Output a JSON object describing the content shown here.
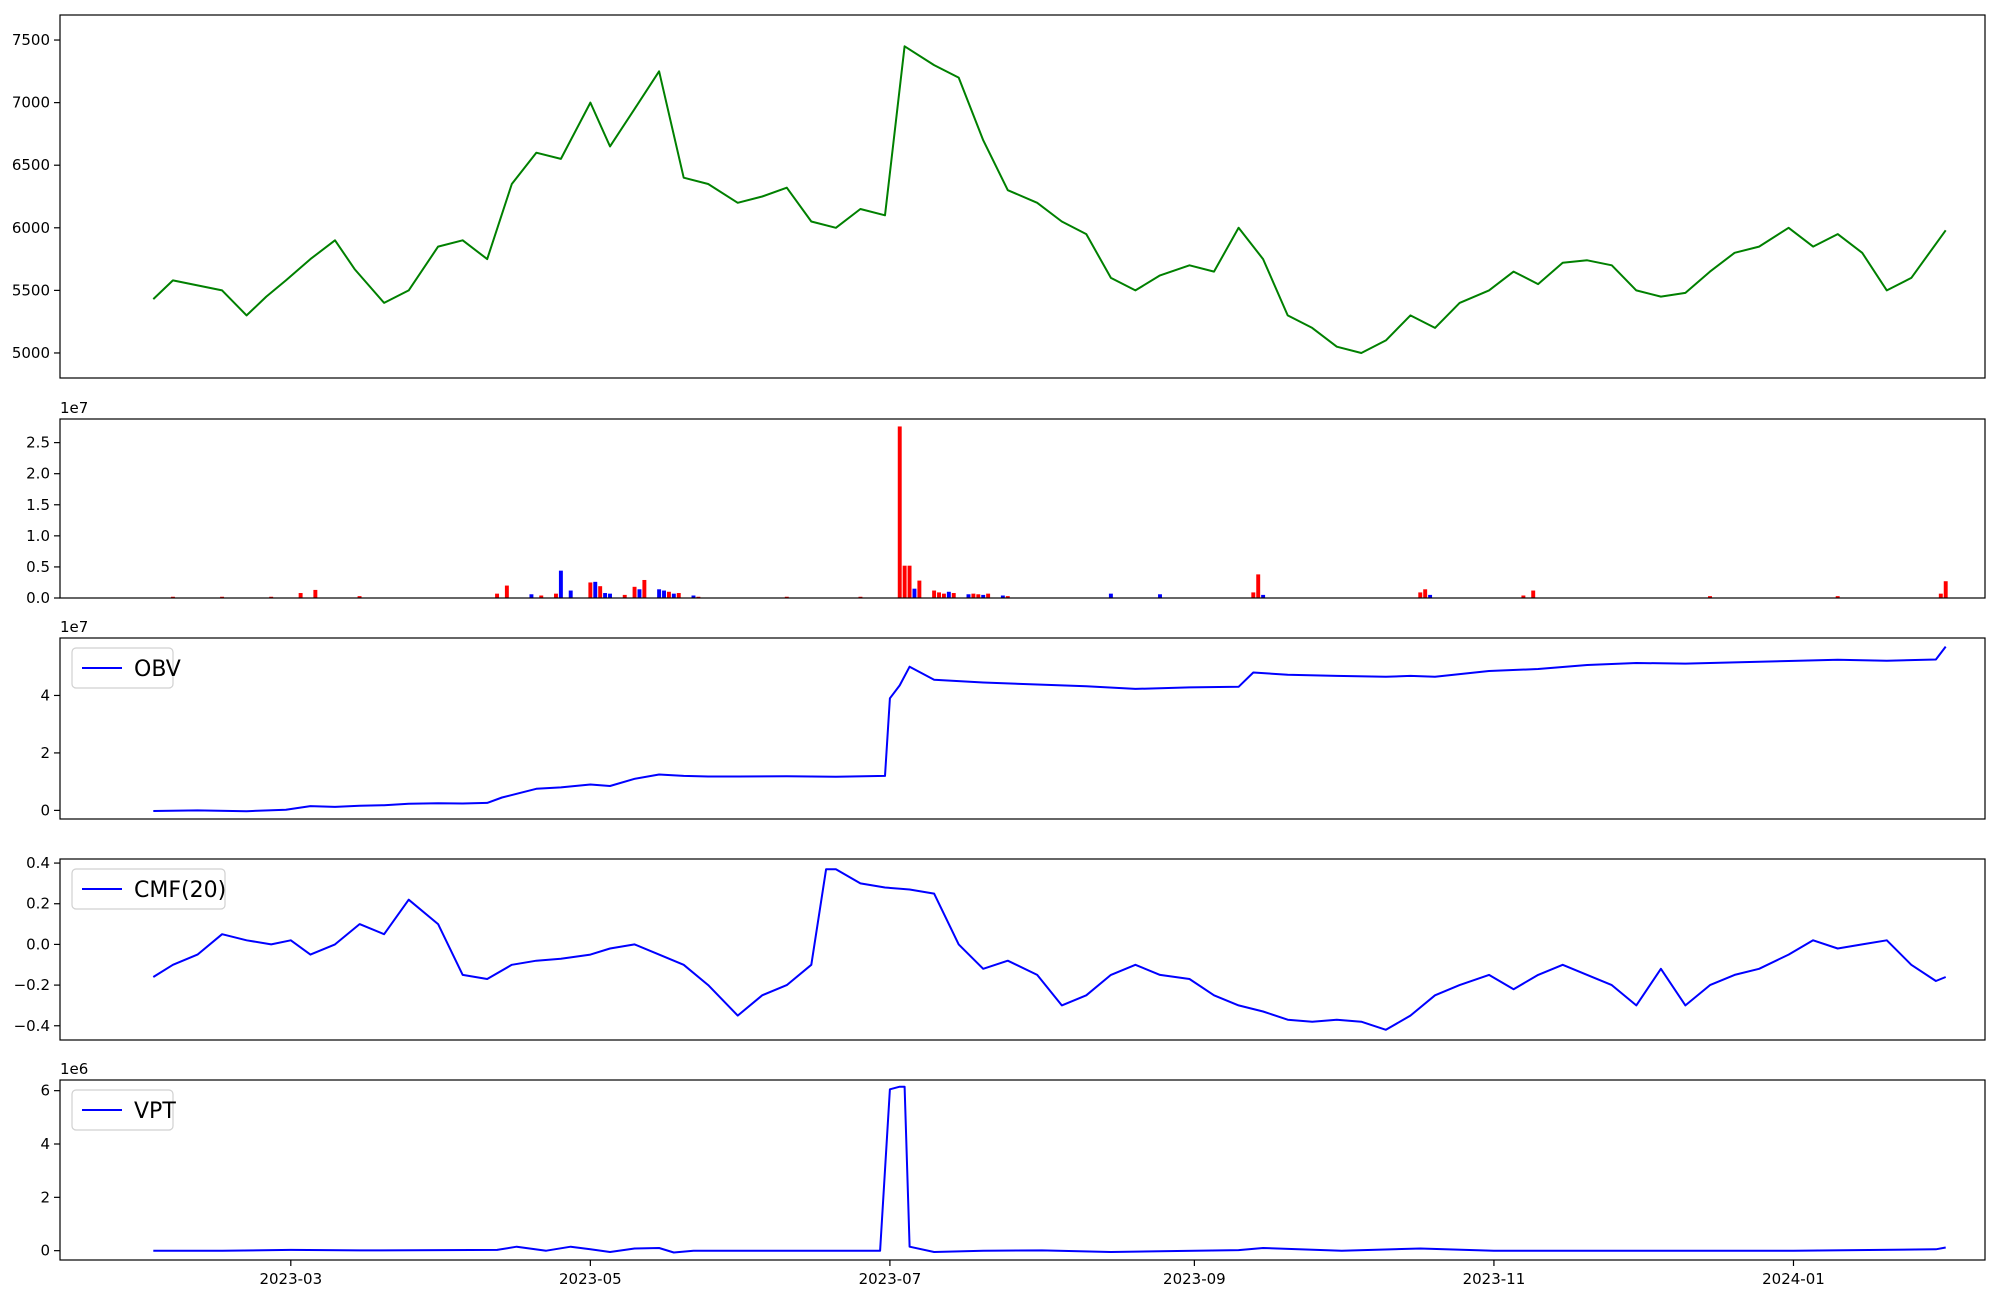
{
  "chart_data": [
    {
      "type": "line",
      "name": "price",
      "color": "#008000",
      "ylim": [
        4800,
        7700
      ],
      "yticks": [
        5000,
        5500,
        6000,
        6500,
        7000,
        7500
      ],
      "ytick_labels": [
        "5000",
        "5500",
        "6000",
        "6500",
        "7000",
        "7500"
      ],
      "offset_label": "",
      "legend": "",
      "x": [
        "2023-02-01",
        "2023-02-05",
        "2023-02-10",
        "2023-02-15",
        "2023-02-20",
        "2023-02-24",
        "2023-02-28",
        "2023-03-05",
        "2023-03-10",
        "2023-03-14",
        "2023-03-20",
        "2023-03-25",
        "2023-03-31",
        "2023-04-05",
        "2023-04-10",
        "2023-04-15",
        "2023-04-20",
        "2023-04-25",
        "2023-05-01",
        "2023-05-05",
        "2023-05-10",
        "2023-05-15",
        "2023-05-20",
        "2023-05-25",
        "2023-05-31",
        "2023-06-05",
        "2023-06-10",
        "2023-06-15",
        "2023-06-20",
        "2023-06-25",
        "2023-06-30",
        "2023-07-04",
        "2023-07-10",
        "2023-07-15",
        "2023-07-20",
        "2023-07-25",
        "2023-07-31",
        "2023-08-05",
        "2023-08-10",
        "2023-08-15",
        "2023-08-20",
        "2023-08-25",
        "2023-08-31",
        "2023-09-05",
        "2023-09-10",
        "2023-09-15",
        "2023-09-20",
        "2023-09-25",
        "2023-09-30",
        "2023-10-05",
        "2023-10-10",
        "2023-10-15",
        "2023-10-20",
        "2023-10-25",
        "2023-10-31",
        "2023-11-05",
        "2023-11-10",
        "2023-11-15",
        "2023-11-20",
        "2023-11-25",
        "2023-11-30",
        "2023-12-05",
        "2023-12-10",
        "2023-12-15",
        "2023-12-20",
        "2023-12-25",
        "2023-12-31",
        "2024-01-05",
        "2024-01-10",
        "2024-01-15",
        "2024-01-20",
        "2024-01-25",
        "2024-02-01"
      ],
      "values": [
        5430,
        5580,
        5540,
        5500,
        5300,
        5450,
        5580,
        5750,
        5900,
        5670,
        5400,
        5500,
        5850,
        5900,
        5750,
        6350,
        6600,
        6550,
        7000,
        6650,
        6950,
        7250,
        6400,
        6350,
        6200,
        6250,
        6320,
        6050,
        6000,
        6150,
        6100,
        7450,
        7300,
        7200,
        6700,
        6300,
        6200,
        6050,
        5950,
        5600,
        5500,
        5620,
        5700,
        5650,
        6000,
        5750,
        5300,
        5200,
        5050,
        5000,
        5100,
        5300,
        5200,
        5400,
        5500,
        5650,
        5550,
        5720,
        5740,
        5700,
        5500,
        5450,
        5480,
        5650,
        5800,
        5850,
        6000,
        5850,
        5950,
        5800,
        5500,
        5600,
        5980
      ]
    },
    {
      "type": "bar",
      "name": "volume",
      "ylim": [
        0,
        28800000
      ],
      "yticks": [
        0,
        5000000,
        10000000,
        15000000,
        20000000,
        25000000
      ],
      "ytick_labels": [
        "0.0",
        "0.5",
        "1.0",
        "1.5",
        "2.0",
        "2.5"
      ],
      "offset_label": "1e7",
      "legend": "",
      "colors": {
        "up": "#ff0000",
        "down": "#0000ff"
      },
      "x": [
        "2023-02-05",
        "2023-02-15",
        "2023-02-25",
        "2023-03-03",
        "2023-03-06",
        "2023-03-15",
        "2023-04-12",
        "2023-04-14",
        "2023-04-19",
        "2023-04-21",
        "2023-04-24",
        "2023-04-25",
        "2023-04-27",
        "2023-05-01",
        "2023-05-02",
        "2023-05-03",
        "2023-05-04",
        "2023-05-05",
        "2023-05-08",
        "2023-05-10",
        "2023-05-11",
        "2023-05-12",
        "2023-05-15",
        "2023-05-16",
        "2023-05-17",
        "2023-05-18",
        "2023-05-19",
        "2023-05-22",
        "2023-05-23",
        "2023-06-10",
        "2023-06-25",
        "2023-07-03",
        "2023-07-04",
        "2023-07-05",
        "2023-07-06",
        "2023-07-07",
        "2023-07-10",
        "2023-07-11",
        "2023-07-12",
        "2023-07-13",
        "2023-07-14",
        "2023-07-17",
        "2023-07-18",
        "2023-07-19",
        "2023-07-20",
        "2023-07-21",
        "2023-07-24",
        "2023-07-25",
        "2023-08-15",
        "2023-08-25",
        "2023-09-13",
        "2023-09-14",
        "2023-09-15",
        "2023-10-17",
        "2023-10-18",
        "2023-10-19",
        "2023-11-07",
        "2023-11-09",
        "2023-12-15",
        "2024-01-10",
        "2024-01-31",
        "2024-02-01"
      ],
      "values": [
        200000,
        200000,
        200000,
        800000,
        1300000,
        300000,
        700000,
        2000000,
        600000,
        400000,
        700000,
        4400000,
        1200000,
        2500000,
        2600000,
        1900000,
        800000,
        700000,
        500000,
        1800000,
        1400000,
        2900000,
        1400000,
        1200000,
        1000000,
        700000,
        800000,
        400000,
        200000,
        200000,
        200000,
        27600000,
        5200000,
        5200000,
        1500000,
        2800000,
        1200000,
        900000,
        700000,
        1000000,
        800000,
        600000,
        700000,
        600000,
        500000,
        700000,
        400000,
        300000,
        700000,
        600000,
        900000,
        3800000,
        500000,
        900000,
        1400000,
        500000,
        400000,
        1200000,
        300000,
        300000,
        700000,
        2700000
      ],
      "direction": [
        "up",
        "up",
        "up",
        "up",
        "up",
        "up",
        "up",
        "up",
        "down",
        "up",
        "up",
        "down",
        "down",
        "up",
        "down",
        "up",
        "down",
        "down",
        "up",
        "up",
        "down",
        "up",
        "down",
        "down",
        "up",
        "down",
        "up",
        "down",
        "up",
        "up",
        "up",
        "up",
        "up",
        "up",
        "down",
        "up",
        "up",
        "up",
        "up",
        "down",
        "up",
        "down",
        "up",
        "up",
        "down",
        "up",
        "down",
        "up",
        "down",
        "down",
        "up",
        "up",
        "down",
        "up",
        "up",
        "down",
        "up",
        "up",
        "up",
        "up",
        "up",
        "up"
      ]
    },
    {
      "type": "line",
      "name": "OBV",
      "color": "#0000ff",
      "ylim": [
        -3000000,
        60000000
      ],
      "yticks": [
        0,
        20000000,
        40000000
      ],
      "ytick_labels": [
        "0",
        "2",
        "4"
      ],
      "offset_label": "1e7",
      "legend": "OBV",
      "x": [
        "2023-02-01",
        "2023-02-10",
        "2023-02-20",
        "2023-02-28",
        "2023-03-05",
        "2023-03-10",
        "2023-03-15",
        "2023-03-20",
        "2023-03-25",
        "2023-03-31",
        "2023-04-05",
        "2023-04-10",
        "2023-04-13",
        "2023-04-20",
        "2023-04-25",
        "2023-05-01",
        "2023-05-05",
        "2023-05-10",
        "2023-05-15",
        "2023-05-20",
        "2023-05-25",
        "2023-05-31",
        "2023-06-10",
        "2023-06-20",
        "2023-06-30",
        "2023-07-01",
        "2023-07-03",
        "2023-07-05",
        "2023-07-10",
        "2023-07-20",
        "2023-07-31",
        "2023-08-10",
        "2023-08-20",
        "2023-08-31",
        "2023-09-10",
        "2023-09-13",
        "2023-09-20",
        "2023-09-30",
        "2023-10-10",
        "2023-10-15",
        "2023-10-20",
        "2023-10-31",
        "2023-11-10",
        "2023-11-20",
        "2023-11-30",
        "2023-12-10",
        "2023-12-20",
        "2023-12-31",
        "2024-01-10",
        "2024-01-20",
        "2024-01-30",
        "2024-02-01"
      ],
      "values": [
        -200000,
        0,
        -300000,
        200000,
        1500000,
        1200000,
        1600000,
        1800000,
        2300000,
        2500000,
        2400000,
        2600000,
        4500000,
        7500000,
        8000000,
        9000000,
        8500000,
        11000000,
        12500000,
        12000000,
        11800000,
        11800000,
        11900000,
        11700000,
        12000000,
        39000000,
        43500000,
        50000000,
        45500000,
        44500000,
        43800000,
        43200000,
        42300000,
        42800000,
        43000000,
        48000000,
        47200000,
        46800000,
        46500000,
        46800000,
        46500000,
        48500000,
        49200000,
        50600000,
        51300000,
        51100000,
        51500000,
        52000000,
        52400000,
        52100000,
        52500000,
        57000000
      ]
    },
    {
      "type": "line",
      "name": "CMF(20)",
      "color": "#0000ff",
      "ylim": [
        -0.47,
        0.42
      ],
      "yticks": [
        -0.4,
        -0.2,
        0.0,
        0.2,
        0.4
      ],
      "ytick_labels": [
        "−0.4",
        "−0.2",
        "0.0",
        "0.2",
        "0.4"
      ],
      "offset_label": "",
      "legend": "CMF(20)",
      "x": [
        "2023-02-01",
        "2023-02-05",
        "2023-02-10",
        "2023-02-15",
        "2023-02-20",
        "2023-02-25",
        "2023-03-01",
        "2023-03-05",
        "2023-03-10",
        "2023-03-15",
        "2023-03-20",
        "2023-03-25",
        "2023-03-31",
        "2023-04-05",
        "2023-04-10",
        "2023-04-15",
        "2023-04-20",
        "2023-04-25",
        "2023-05-01",
        "2023-05-05",
        "2023-05-10",
        "2023-05-15",
        "2023-05-20",
        "2023-05-25",
        "2023-05-31",
        "2023-06-05",
        "2023-06-10",
        "2023-06-15",
        "2023-06-18",
        "2023-06-20",
        "2023-06-25",
        "2023-06-30",
        "2023-07-05",
        "2023-07-10",
        "2023-07-15",
        "2023-07-20",
        "2023-07-25",
        "2023-07-31",
        "2023-08-05",
        "2023-08-10",
        "2023-08-15",
        "2023-08-20",
        "2023-08-25",
        "2023-08-31",
        "2023-09-05",
        "2023-09-10",
        "2023-09-15",
        "2023-09-20",
        "2023-09-25",
        "2023-09-30",
        "2023-10-05",
        "2023-10-10",
        "2023-10-15",
        "2023-10-20",
        "2023-10-25",
        "2023-10-31",
        "2023-11-05",
        "2023-11-10",
        "2023-11-15",
        "2023-11-20",
        "2023-11-25",
        "2023-11-30",
        "2023-12-05",
        "2023-12-10",
        "2023-12-15",
        "2023-12-20",
        "2023-12-25",
        "2023-12-31",
        "2024-01-05",
        "2024-01-10",
        "2024-01-15",
        "2024-01-20",
        "2024-01-25",
        "2024-01-30",
        "2024-02-01"
      ],
      "values": [
        -0.16,
        -0.1,
        -0.05,
        0.05,
        0.02,
        0.0,
        0.02,
        -0.05,
        0.0,
        0.1,
        0.05,
        0.22,
        0.1,
        -0.15,
        -0.17,
        -0.1,
        -0.08,
        -0.07,
        -0.05,
        -0.02,
        0.0,
        -0.05,
        -0.1,
        -0.2,
        -0.35,
        -0.25,
        -0.2,
        -0.1,
        0.37,
        0.37,
        0.3,
        0.28,
        0.27,
        0.25,
        0.0,
        -0.12,
        -0.08,
        -0.15,
        -0.3,
        -0.25,
        -0.15,
        -0.1,
        -0.15,
        -0.17,
        -0.25,
        -0.3,
        -0.33,
        -0.37,
        -0.38,
        -0.37,
        -0.38,
        -0.42,
        -0.35,
        -0.25,
        -0.2,
        -0.15,
        -0.22,
        -0.15,
        -0.1,
        -0.15,
        -0.2,
        -0.3,
        -0.12,
        -0.3,
        -0.2,
        -0.15,
        -0.12,
        -0.05,
        0.02,
        -0.02,
        0.0,
        0.02,
        -0.1,
        -0.18,
        -0.16
      ]
    },
    {
      "type": "line",
      "name": "VPT",
      "color": "#0000ff",
      "ylim": [
        -350000,
        6400000
      ],
      "yticks": [
        0,
        2000000,
        4000000,
        6000000
      ],
      "ytick_labels": [
        "0",
        "2",
        "4",
        "6"
      ],
      "offset_label": "1e6",
      "legend": "VPT",
      "x": [
        "2023-02-01",
        "2023-02-15",
        "2023-03-01",
        "2023-03-15",
        "2023-04-01",
        "2023-04-12",
        "2023-04-16",
        "2023-04-22",
        "2023-04-27",
        "2023-05-01",
        "2023-05-05",
        "2023-05-10",
        "2023-05-15",
        "2023-05-18",
        "2023-05-22",
        "2023-05-31",
        "2023-06-15",
        "2023-06-29",
        "2023-07-01",
        "2023-07-03",
        "2023-07-04",
        "2023-07-05",
        "2023-07-10",
        "2023-07-20",
        "2023-08-01",
        "2023-08-15",
        "2023-09-01",
        "2023-09-10",
        "2023-09-15",
        "2023-10-01",
        "2023-10-17",
        "2023-11-01",
        "2023-12-01",
        "2024-01-01",
        "2024-01-30",
        "2024-02-01"
      ],
      "values": [
        0,
        0,
        30000,
        10000,
        20000,
        30000,
        150000,
        0,
        150000,
        50000,
        -50000,
        80000,
        100000,
        -70000,
        0,
        0,
        0,
        0,
        6050000,
        6150000,
        6150000,
        150000,
        -50000,
        0,
        10000,
        -50000,
        0,
        20000,
        100000,
        0,
        80000,
        0,
        0,
        0,
        50000,
        120000
      ]
    }
  ],
  "x_axis": {
    "xlim": [
      "2023-01-13",
      "2024-02-09"
    ],
    "ticks": [
      "2023-03-01",
      "2023-05-01",
      "2023-07-01",
      "2023-09-01",
      "2023-11-01",
      "2024-01-01"
    ],
    "tick_labels": [
      "2023-03",
      "2023-05",
      "2023-07",
      "2023-09",
      "2023-11",
      "2024-01"
    ]
  }
}
